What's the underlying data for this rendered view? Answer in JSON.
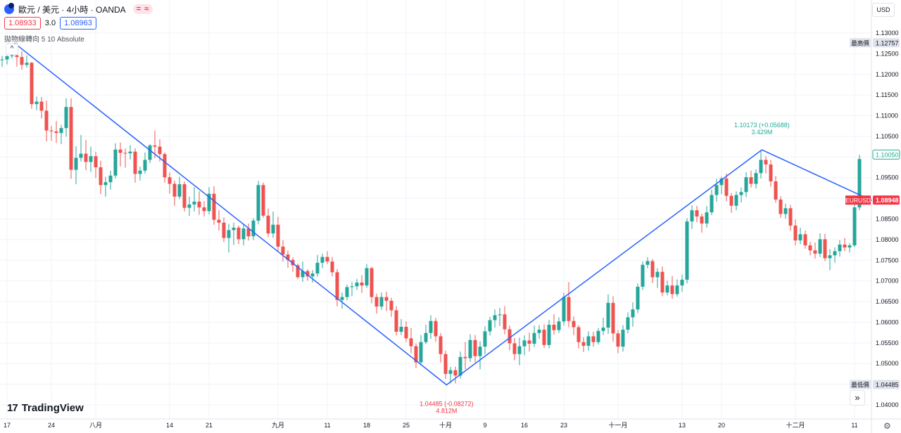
{
  "header": {
    "symbol_title": "歐元 / 美元 · 4小時 · OANDA",
    "badge": "= ≈",
    "symbol_icon": "eur-usd-flag-icon"
  },
  "quotes": {
    "sell": "1.08933",
    "spread": "3.0",
    "buy": "1.08963"
  },
  "indicator": {
    "label": "拋物線轉向 5 10 Absolute",
    "collapse_glyph": "^"
  },
  "currency_button": "USD",
  "brand": "TradingView",
  "brand_icon": "tradingview-logo-icon",
  "scroll_button_glyph": "»",
  "settings_icon": "gear-icon",
  "colors": {
    "up": "#26a69a",
    "down": "#ef5350",
    "trendline": "#2962ff",
    "price_tag": "#f23645",
    "grid": "#f0f3fa",
    "axis_text": "#131722"
  },
  "chart_data": {
    "type": "candlestick",
    "symbol": "EURUSD",
    "interval": "4h",
    "y_axis": {
      "position": "right",
      "range": [
        1.037,
        1.1355
      ],
      "ticks": [
        1.04,
        1.045,
        1.05,
        1.055,
        1.06,
        1.065,
        1.07,
        1.075,
        1.08,
        1.085,
        1.09,
        1.095,
        1.1,
        1.105,
        1.11,
        1.115,
        1.12,
        1.125,
        1.13
      ],
      "tick_labels": [
        "1.04000",
        "1.04500",
        "1.05000",
        "1.05500",
        "1.06000",
        "1.06500",
        "1.07000",
        "1.07500",
        "1.08000",
        "1.08500",
        "1.09000",
        "1.09500",
        "1.10000",
        "1.10500",
        "1.11000",
        "1.11500",
        "1.12000",
        "1.12500",
        "1.13000"
      ]
    },
    "x_axis": {
      "ticks": [
        {
          "label": "17",
          "i": 1
        },
        {
          "label": "24",
          "i": 10
        },
        {
          "label": "八月",
          "i": 19
        },
        {
          "label": "14",
          "i": 34
        },
        {
          "label": "21",
          "i": 42
        },
        {
          "label": "九月",
          "i": 56
        },
        {
          "label": "11",
          "i": 66
        },
        {
          "label": "18",
          "i": 74
        },
        {
          "label": "25",
          "i": 82
        },
        {
          "label": "十月",
          "i": 90
        },
        {
          "label": "9",
          "i": 98
        },
        {
          "label": "16",
          "i": 106
        },
        {
          "label": "23",
          "i": 114
        },
        {
          "label": "十一月",
          "i": 125
        },
        {
          "label": "13",
          "i": 138
        },
        {
          "label": "20",
          "i": 146
        },
        {
          "label": "十二月",
          "i": 161
        },
        {
          "label": "11",
          "i": 173
        }
      ]
    },
    "grid": true,
    "ohlc": [
      [
        1.1235,
        1.1245,
        1.1218,
        1.1236
      ],
      [
        1.1236,
        1.1246,
        1.1224,
        1.1244
      ],
      [
        1.1244,
        1.1259,
        1.1239,
        1.1246
      ],
      [
        1.1246,
        1.1276,
        1.1219,
        1.1242
      ],
      [
        1.1242,
        1.1256,
        1.1211,
        1.1223
      ],
      [
        1.1223,
        1.1246,
        1.1216,
        1.1228
      ],
      [
        1.1228,
        1.123,
        1.1117,
        1.1128
      ],
      [
        1.1128,
        1.1146,
        1.1113,
        1.1134
      ],
      [
        1.1134,
        1.1145,
        1.1093,
        1.1112
      ],
      [
        1.1112,
        1.1136,
        1.1038,
        1.1064
      ],
      [
        1.1064,
        1.1075,
        1.1039,
        1.1062
      ],
      [
        1.1062,
        1.1087,
        1.1034,
        1.1058
      ],
      [
        1.1058,
        1.1078,
        1.1031,
        1.107
      ],
      [
        1.107,
        1.1142,
        1.1049,
        1.1121
      ],
      [
        1.1121,
        1.1142,
        1.0947,
        1.0969
      ],
      [
        1.0969,
        1.1026,
        1.0934,
        1.0998
      ],
      [
        1.0998,
        1.1053,
        1.0989,
        1.1008
      ],
      [
        1.1008,
        1.1041,
        1.0968,
        1.0988
      ],
      [
        1.0988,
        1.1025,
        1.0964,
        1.1002
      ],
      [
        1.1002,
        1.1013,
        1.0949,
        1.0975
      ],
      [
        1.0975,
        1.0991,
        1.091,
        1.0932
      ],
      [
        1.0932,
        1.0952,
        1.0904,
        1.0939
      ],
      [
        1.0939,
        1.0967,
        1.0921,
        1.0955
      ],
      [
        1.0955,
        1.1033,
        1.0948,
        1.1018
      ],
      [
        1.1018,
        1.1035,
        1.0977,
        1.101
      ],
      [
        1.101,
        1.1021,
        1.0974,
        1.1009
      ],
      [
        1.1009,
        1.1029,
        1.0994,
        1.1013
      ],
      [
        1.1013,
        1.1021,
        1.0938,
        1.0959
      ],
      [
        1.0959,
        1.0977,
        1.0943,
        1.0967
      ],
      [
        1.0967,
        1.1011,
        1.096,
        1.0993
      ],
      [
        1.0993,
        1.1031,
        1.0985,
        1.1028
      ],
      [
        1.1028,
        1.1064,
        1.0997,
        1.1025
      ],
      [
        1.1025,
        1.1043,
        1.0989,
        1.1007
      ],
      [
        1.1007,
        1.1011,
        1.0938,
        1.0951
      ],
      [
        1.0951,
        1.0963,
        1.0911,
        1.0935
      ],
      [
        1.0935,
        1.0943,
        1.0882,
        1.0904
      ],
      [
        1.0904,
        1.0952,
        1.0898,
        1.0934
      ],
      [
        1.0934,
        1.0941,
        1.0868,
        1.0877
      ],
      [
        1.0877,
        1.0904,
        1.0857,
        1.0885
      ],
      [
        1.0885,
        1.0927,
        1.0868,
        1.0892
      ],
      [
        1.0892,
        1.0917,
        1.086,
        1.0878
      ],
      [
        1.0878,
        1.0893,
        1.0856,
        1.0869
      ],
      [
        1.0869,
        1.0927,
        1.0861,
        1.0911
      ],
      [
        1.0911,
        1.0929,
        1.0836,
        1.0848
      ],
      [
        1.0848,
        1.0871,
        1.0822,
        1.0841
      ],
      [
        1.0841,
        1.0854,
        1.0794,
        1.0804
      ],
      [
        1.0804,
        1.0838,
        1.0769,
        1.0823
      ],
      [
        1.0823,
        1.0841,
        1.0787,
        1.0829
      ],
      [
        1.0829,
        1.0834,
        1.0789,
        1.0801
      ],
      [
        1.0801,
        1.0839,
        1.0786,
        1.0827
      ],
      [
        1.0827,
        1.0839,
        1.0798,
        1.0808
      ],
      [
        1.0808,
        1.0852,
        1.0799,
        1.0846
      ],
      [
        1.0846,
        1.0942,
        1.0837,
        1.0932
      ],
      [
        1.0932,
        1.0938,
        1.0853,
        1.0858
      ],
      [
        1.0858,
        1.0875,
        1.0806,
        1.0815
      ],
      [
        1.0815,
        1.0868,
        1.0804,
        1.0836
      ],
      [
        1.0836,
        1.0855,
        1.0772,
        1.0783
      ],
      [
        1.0783,
        1.0799,
        1.0747,
        1.0764
      ],
      [
        1.0764,
        1.0773,
        1.0732,
        1.0751
      ],
      [
        1.0751,
        1.0757,
        1.0722,
        1.0738
      ],
      [
        1.0738,
        1.0742,
        1.0705,
        1.0709
      ],
      [
        1.0709,
        1.0747,
        1.0698,
        1.0724
      ],
      [
        1.0724,
        1.0728,
        1.0701,
        1.0711
      ],
      [
        1.0711,
        1.0726,
        1.0696,
        1.0718
      ],
      [
        1.0718,
        1.0763,
        1.071,
        1.0744
      ],
      [
        1.0744,
        1.0766,
        1.0731,
        1.0758
      ],
      [
        1.0758,
        1.0772,
        1.0741,
        1.0747
      ],
      [
        1.0747,
        1.0758,
        1.0711,
        1.0721
      ],
      [
        1.0721,
        1.0729,
        1.0639,
        1.0654
      ],
      [
        1.0654,
        1.0672,
        1.0633,
        1.0661
      ],
      [
        1.0661,
        1.0691,
        1.0653,
        1.0685
      ],
      [
        1.0685,
        1.0697,
        1.0663,
        1.0687
      ],
      [
        1.0687,
        1.0705,
        1.0678,
        1.0696
      ],
      [
        1.0696,
        1.0714,
        1.0671,
        1.0689
      ],
      [
        1.0689,
        1.0741,
        1.0683,
        1.0731
      ],
      [
        1.0731,
        1.0734,
        1.0646,
        1.0661
      ],
      [
        1.0661,
        1.0669,
        1.0621,
        1.0638
      ],
      [
        1.0638,
        1.0672,
        1.063,
        1.0661
      ],
      [
        1.0661,
        1.0674,
        1.0627,
        1.0652
      ],
      [
        1.0652,
        1.0659,
        1.0613,
        1.0629
      ],
      [
        1.0629,
        1.0639,
        1.0568,
        1.0577
      ],
      [
        1.0577,
        1.0608,
        1.0569,
        1.0589
      ],
      [
        1.0589,
        1.0602,
        1.0552,
        1.0561
      ],
      [
        1.0561,
        1.0586,
        1.0525,
        1.0542
      ],
      [
        1.0542,
        1.0549,
        1.0489,
        1.0503
      ],
      [
        1.0503,
        1.0569,
        1.0496,
        1.0552
      ],
      [
        1.0552,
        1.0594,
        1.0547,
        1.0574
      ],
      [
        1.0574,
        1.0617,
        1.056,
        1.0603
      ],
      [
        1.0603,
        1.0611,
        1.0553,
        1.0566
      ],
      [
        1.0566,
        1.0574,
        1.0503,
        1.0523
      ],
      [
        1.0523,
        1.0531,
        1.0463,
        1.0475
      ],
      [
        1.0475,
        1.0492,
        1.0452,
        1.0484
      ],
      [
        1.0484,
        1.0493,
        1.0452,
        1.0471
      ],
      [
        1.0471,
        1.0529,
        1.0464,
        1.0516
      ],
      [
        1.0516,
        1.0552,
        1.0486,
        1.0513
      ],
      [
        1.0513,
        1.0571,
        1.0504,
        1.0557
      ],
      [
        1.0557,
        1.0569,
        1.0503,
        1.0518
      ],
      [
        1.0518,
        1.0554,
        1.0486,
        1.0541
      ],
      [
        1.0541,
        1.059,
        1.0523,
        1.0578
      ],
      [
        1.0578,
        1.0613,
        1.0568,
        1.0605
      ],
      [
        1.0605,
        1.0631,
        1.0587,
        1.0617
      ],
      [
        1.0617,
        1.0635,
        1.0591,
        1.0619
      ],
      [
        1.0619,
        1.0639,
        1.0571,
        1.0583
      ],
      [
        1.0583,
        1.0592,
        1.0532,
        1.0549
      ],
      [
        1.0549,
        1.0562,
        1.0508,
        1.0523
      ],
      [
        1.0523,
        1.0563,
        1.0496,
        1.0542
      ],
      [
        1.0542,
        1.0568,
        1.052,
        1.0556
      ],
      [
        1.0556,
        1.0575,
        1.0529,
        1.0548
      ],
      [
        1.0548,
        1.0592,
        1.054,
        1.0574
      ],
      [
        1.0574,
        1.0593,
        1.056,
        1.0582
      ],
      [
        1.0582,
        1.0595,
        1.0538,
        1.0545
      ],
      [
        1.0545,
        1.0606,
        1.0537,
        1.0594
      ],
      [
        1.0594,
        1.062,
        1.057,
        1.0581
      ],
      [
        1.0581,
        1.0612,
        1.0574,
        1.0602
      ],
      [
        1.0602,
        1.0672,
        1.0592,
        1.0661
      ],
      [
        1.0661,
        1.0697,
        1.0588,
        1.0603
      ],
      [
        1.0603,
        1.0614,
        1.0569,
        1.0588
      ],
      [
        1.0588,
        1.0593,
        1.0537,
        1.0552
      ],
      [
        1.0552,
        1.0564,
        1.0528,
        1.0543
      ],
      [
        1.0543,
        1.0578,
        1.0531,
        1.0566
      ],
      [
        1.0566,
        1.0577,
        1.0541,
        1.0552
      ],
      [
        1.0552,
        1.0586,
        1.0546,
        1.0579
      ],
      [
        1.0579,
        1.0611,
        1.0569,
        1.0587
      ],
      [
        1.0587,
        1.0668,
        1.0572,
        1.0647
      ],
      [
        1.0647,
        1.0663,
        1.0553,
        1.0573
      ],
      [
        1.0573,
        1.0581,
        1.0525,
        1.0541
      ],
      [
        1.0541,
        1.0593,
        1.0529,
        1.0582
      ],
      [
        1.0582,
        1.0624,
        1.0573,
        1.0612
      ],
      [
        1.0612,
        1.0648,
        1.0589,
        1.0631
      ],
      [
        1.0631,
        1.0694,
        1.0622,
        1.0686
      ],
      [
        1.0686,
        1.0747,
        1.0678,
        1.0739
      ],
      [
        1.0739,
        1.0757,
        1.0731,
        1.0748
      ],
      [
        1.0748,
        1.0753,
        1.0695,
        1.0709
      ],
      [
        1.0709,
        1.0731,
        1.0683,
        1.0722
      ],
      [
        1.0722,
        1.0735,
        1.0663,
        1.0672
      ],
      [
        1.0672,
        1.0701,
        1.0665,
        1.0689
      ],
      [
        1.0689,
        1.0712,
        1.0657,
        1.0668
      ],
      [
        1.0668,
        1.0704,
        1.0662,
        1.0689
      ],
      [
        1.0689,
        1.0715,
        1.0674,
        1.0703
      ],
      [
        1.0703,
        1.0852,
        1.0694,
        1.0844
      ],
      [
        1.0844,
        1.0883,
        1.0826,
        1.0871
      ],
      [
        1.0871,
        1.0882,
        1.0842,
        1.0856
      ],
      [
        1.0856,
        1.0863,
        1.0817,
        1.0839
      ],
      [
        1.0839,
        1.0881,
        1.0829,
        1.0866
      ],
      [
        1.0866,
        1.0921,
        1.0859,
        1.0908
      ],
      [
        1.0908,
        1.0947,
        1.0892,
        1.0932
      ],
      [
        1.0932,
        1.0952,
        1.091,
        1.0948
      ],
      [
        1.0948,
        1.096,
        1.0893,
        1.0906
      ],
      [
        1.0906,
        1.0913,
        1.0865,
        1.0882
      ],
      [
        1.0882,
        1.0917,
        1.0871,
        1.0908
      ],
      [
        1.0908,
        1.0926,
        1.089,
        1.0915
      ],
      [
        1.0915,
        1.0963,
        1.0903,
        1.0951
      ],
      [
        1.0951,
        1.0967,
        1.0926,
        1.0935
      ],
      [
        1.0935,
        1.097,
        1.0924,
        1.0961
      ],
      [
        1.0961,
        1.1017,
        1.0948,
        1.0993
      ],
      [
        1.0993,
        1.1002,
        1.096,
        1.0982
      ],
      [
        1.0982,
        1.0993,
        1.0928,
        1.0941
      ],
      [
        1.0941,
        1.0954,
        1.0889,
        1.0897
      ],
      [
        1.0897,
        1.0905,
        1.0853,
        1.0862
      ],
      [
        1.0862,
        1.0887,
        1.0851,
        1.0876
      ],
      [
        1.0876,
        1.0884,
        1.0821,
        1.0834
      ],
      [
        1.0834,
        1.0849,
        1.0786,
        1.0798
      ],
      [
        1.0798,
        1.0829,
        1.0789,
        1.0813
      ],
      [
        1.0813,
        1.0822,
        1.0778,
        1.0786
      ],
      [
        1.0786,
        1.0795,
        1.0762,
        1.0774
      ],
      [
        1.0774,
        1.0793,
        1.0754,
        1.0766
      ],
      [
        1.0766,
        1.0815,
        1.0758,
        1.0801
      ],
      [
        1.0801,
        1.0814,
        1.0748,
        1.0755
      ],
      [
        1.0755,
        1.0777,
        1.0726,
        1.0762
      ],
      [
        1.0762,
        1.0781,
        1.0744,
        1.0772
      ],
      [
        1.0772,
        1.0799,
        1.0759,
        1.0788
      ],
      [
        1.0788,
        1.0804,
        1.0772,
        1.0781
      ],
      [
        1.0781,
        1.0792,
        1.0769,
        1.0786
      ],
      [
        1.0786,
        1.0885,
        1.0782,
        1.0878
      ],
      [
        1.0878,
        1.1005,
        1.0871,
        1.0995
      ]
    ],
    "trendline": [
      {
        "i": 2.5,
        "price": 1.12757
      },
      {
        "i": 90.2,
        "price": 1.04485
      },
      {
        "i": 154.2,
        "price": 1.10173
      },
      {
        "i": 176.5,
        "price": 1.08948
      }
    ],
    "annotations": [
      {
        "text": "1.04485 (-0.08272)",
        "sub": "4.812M",
        "i": 90.2,
        "price": 1.04485,
        "place": "below",
        "color": "#f23645"
      },
      {
        "text": "1.10173 (+0.05688)",
        "sub": "3.429M",
        "i": 154.2,
        "price": 1.10173,
        "place": "above",
        "color": "#22ab94"
      }
    ],
    "price_labels": [
      {
        "kind": "high",
        "label": "最高價",
        "value": "1.12757",
        "price": 1.12757,
        "color": "#131722",
        "bg": "#e0e3eb"
      },
      {
        "kind": "close",
        "label": "",
        "value": "1.10050",
        "price": 1.1005,
        "color": "#22ab94",
        "bg": "#ffffff"
      },
      {
        "kind": "last",
        "label": "EURUSD",
        "value": "1.08948",
        "price": 1.08948,
        "color": "#ffffff",
        "bg": "#f23645"
      },
      {
        "kind": "low",
        "label": "最低價",
        "value": "1.04485",
        "price": 1.04485,
        "color": "#131722",
        "bg": "#e0e3eb"
      }
    ]
  }
}
